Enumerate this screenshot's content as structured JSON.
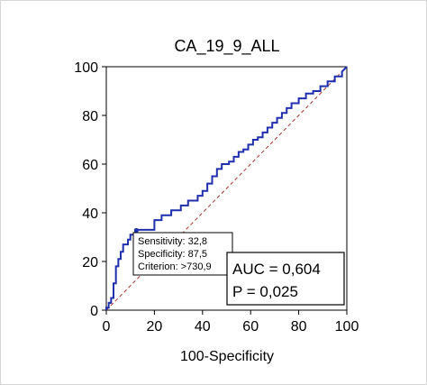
{
  "chart_data": {
    "type": "line",
    "title": "CA_19_9_ALL",
    "xlabel": "100-Specificity",
    "ylabel": "",
    "xlim": [
      0,
      100
    ],
    "ylim": [
      0,
      100
    ],
    "xticks": [
      0,
      20,
      40,
      60,
      80,
      100
    ],
    "yticks": [
      0,
      20,
      40,
      60,
      80,
      100
    ],
    "grid": false,
    "legend": "none",
    "series": [
      {
        "name": "",
        "color": "#1f2fae",
        "step": true,
        "x": [
          0,
          0,
          1,
          1,
          2,
          2,
          3,
          3,
          4,
          4,
          5,
          5,
          6,
          6,
          7,
          7,
          9,
          9,
          10,
          10,
          12,
          12,
          20,
          20,
          23,
          23,
          27,
          27,
          31,
          31,
          34,
          34,
          38,
          38,
          40,
          40,
          42,
          42,
          44,
          44,
          46,
          46,
          48,
          48,
          51,
          51,
          53,
          53,
          55,
          55,
          57,
          57,
          59,
          59,
          61,
          61,
          63,
          63,
          65,
          65,
          67,
          67,
          69,
          69,
          71,
          71,
          73,
          73,
          75,
          75,
          77,
          77,
          80,
          80,
          83,
          83,
          86,
          86,
          89,
          89,
          92,
          92,
          95,
          95,
          98,
          98,
          100
        ],
        "y": [
          0,
          1,
          1,
          3,
          3,
          5,
          5,
          11,
          11,
          18,
          18,
          21,
          21,
          24,
          24,
          27,
          27,
          29,
          29,
          31,
          31,
          33,
          33,
          37,
          37,
          39,
          39,
          41,
          41,
          43,
          43,
          45,
          45,
          47,
          47,
          49,
          49,
          52,
          52,
          55,
          55,
          58,
          58,
          60,
          60,
          61,
          61,
          63,
          63,
          65,
          65,
          66,
          66,
          68,
          68,
          70,
          70,
          71,
          71,
          73,
          73,
          75,
          75,
          77,
          77,
          79,
          79,
          81,
          81,
          83,
          83,
          85,
          85,
          87,
          87,
          89,
          89,
          90,
          90,
          92,
          92,
          94,
          94,
          96,
          96,
          98,
          100
        ]
      },
      {
        "name": "",
        "color": "#b03030",
        "dashed": true,
        "x": [
          0,
          100
        ],
        "y": [
          0,
          100
        ]
      }
    ],
    "annotations": {
      "criterion_box": {
        "sensitivity": "Sensitivity: 32,8",
        "specificity": "Specificity: 87,5",
        "criterion": "Criterion: >730,9",
        "point_x": 12.5,
        "point_y": 32.8
      },
      "stats_box": {
        "auc": "AUC = 0,604",
        "p": "P = 0,025"
      }
    }
  }
}
